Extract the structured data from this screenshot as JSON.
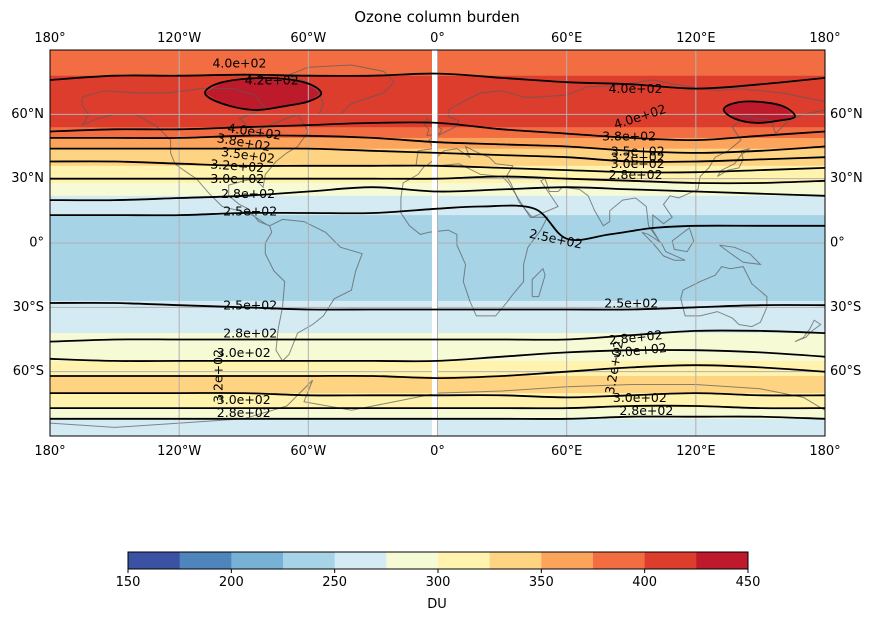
{
  "title": "Ozone column burden",
  "x_ticks": [
    {
      "lon": -180,
      "label": "180°"
    },
    {
      "lon": -120,
      "label": "120°W"
    },
    {
      "lon": -60,
      "label": "60°W"
    },
    {
      "lon": 0,
      "label": "0°"
    },
    {
      "lon": 60,
      "label": "60°E"
    },
    {
      "lon": 120,
      "label": "120°E"
    },
    {
      "lon": 180,
      "label": "180°"
    }
  ],
  "y_ticks": [
    {
      "lat": 60,
      "label": "60°N"
    },
    {
      "lat": 30,
      "label": "30°N"
    },
    {
      "lat": 0,
      "label": "0°"
    },
    {
      "lat": -30,
      "label": "30°S"
    },
    {
      "lat": -60,
      "label": "60°S"
    }
  ],
  "extent": {
    "lon": [
      -180,
      180
    ],
    "lat": [
      -90,
      90
    ]
  },
  "grid": true,
  "colorbar": {
    "label": "DU",
    "levels": [
      150,
      175,
      200,
      225,
      250,
      275,
      300,
      325,
      350,
      375,
      400,
      425,
      450
    ],
    "tick_labels": [
      "150",
      "200",
      "250",
      "300",
      "350",
      "400",
      "450"
    ],
    "tick_values": [
      150,
      200,
      250,
      300,
      350,
      400,
      450
    ],
    "colors": [
      "#3b52a3",
      "#4f85bd",
      "#77b1d6",
      "#a6d3e6",
      "#d4ebf4",
      "#f6fbd6",
      "#fff3ad",
      "#fed382",
      "#fca45c",
      "#f36d43",
      "#dc3d2d",
      "#bd1a2b"
    ]
  },
  "bands": [
    {
      "lat": [
        78,
        90
      ],
      "value": 387
    },
    {
      "lat": [
        54,
        78
      ],
      "value": 412
    },
    {
      "lat": [
        49,
        54
      ],
      "value": 387
    },
    {
      "lat": [
        44,
        49
      ],
      "value": 362
    },
    {
      "lat": [
        36,
        44
      ],
      "value": 337
    },
    {
      "lat": [
        28,
        36
      ],
      "value": 312
    },
    {
      "lat": [
        22,
        28
      ],
      "value": 287
    },
    {
      "lat": [
        13,
        22
      ],
      "value": 262
    },
    {
      "lat": [
        -27,
        13
      ],
      "value": 237
    },
    {
      "lat": [
        -42,
        -27
      ],
      "value": 262
    },
    {
      "lat": [
        -55,
        -42
      ],
      "value": 287
    },
    {
      "lat": [
        -62,
        -55
      ],
      "value": 312
    },
    {
      "lat": [
        -70,
        -62
      ],
      "value": 337
    },
    {
      "lat": [
        -77,
        -70
      ],
      "value": 312
    },
    {
      "lat": [
        -82,
        -77
      ],
      "value": 287
    },
    {
      "lat": [
        -90,
        -82
      ],
      "value": 262
    }
  ],
  "blobs": [
    {
      "value": 437,
      "polygon": [
        [
          -108,
          70
        ],
        [
          -100,
          65
        ],
        [
          -85,
          62
        ],
        [
          -70,
          64
        ],
        [
          -60,
          66
        ],
        [
          -54,
          70
        ],
        [
          -62,
          75
        ],
        [
          -80,
          77
        ],
        [
          -100,
          75
        ]
      ]
    },
    {
      "value": 437,
      "polygon": [
        [
          133,
          62
        ],
        [
          138,
          58
        ],
        [
          148,
          56
        ],
        [
          158,
          57
        ],
        [
          166,
          59
        ],
        [
          160,
          64
        ],
        [
          147,
          66
        ],
        [
          137,
          65
        ]
      ]
    }
  ],
  "contours": [
    {
      "value": 400,
      "points": [
        [
          -180,
          76
        ],
        [
          -150,
          78
        ],
        [
          -120,
          78
        ],
        [
          -90,
          78.5
        ],
        [
          -60,
          78
        ],
        [
          -30,
          78
        ],
        [
          0,
          79
        ],
        [
          30,
          77
        ],
        [
          60,
          75
        ],
        [
          90,
          74
        ],
        [
          120,
          72
        ],
        [
          150,
          74
        ],
        [
          180,
          77
        ]
      ]
    },
    {
      "value": 400,
      "points": [
        [
          -180,
          52
        ],
        [
          -150,
          53
        ],
        [
          -120,
          53
        ],
        [
          -90,
          54
        ],
        [
          -60,
          55
        ],
        [
          -30,
          56
        ],
        [
          0,
          56
        ],
        [
          30,
          53
        ],
        [
          60,
          51
        ],
        [
          90,
          49
        ],
        [
          120,
          48
        ],
        [
          150,
          50
        ],
        [
          180,
          52
        ]
      ]
    },
    {
      "value": 380,
      "points": [
        [
          -180,
          49
        ],
        [
          -150,
          49
        ],
        [
          -120,
          49
        ],
        [
          -90,
          50
        ],
        [
          -60,
          50
        ],
        [
          -30,
          49
        ],
        [
          0,
          47
        ],
        [
          30,
          46
        ],
        [
          60,
          45
        ],
        [
          90,
          43
        ],
        [
          120,
          42
        ],
        [
          150,
          43
        ],
        [
          180,
          45
        ]
      ]
    },
    {
      "value": 350,
      "points": [
        [
          -180,
          44
        ],
        [
          -150,
          44
        ],
        [
          -120,
          44
        ],
        [
          -90,
          44
        ],
        [
          -60,
          44
        ],
        [
          -30,
          43
        ],
        [
          0,
          42
        ],
        [
          30,
          41
        ],
        [
          60,
          40
        ],
        [
          90,
          38
        ],
        [
          120,
          38
        ],
        [
          150,
          39
        ],
        [
          180,
          40
        ]
      ]
    },
    {
      "value": 320,
      "points": [
        [
          -180,
          38
        ],
        [
          -150,
          38
        ],
        [
          -120,
          37
        ],
        [
          -90,
          36
        ],
        [
          -60,
          36
        ],
        [
          -30,
          36
        ],
        [
          0,
          36
        ],
        [
          30,
          35
        ],
        [
          60,
          34
        ],
        [
          90,
          33
        ],
        [
          120,
          33
        ],
        [
          150,
          34
        ],
        [
          180,
          35
        ]
      ]
    },
    {
      "value": 300,
      "points": [
        [
          -180,
          30
        ],
        [
          -150,
          30
        ],
        [
          -120,
          30
        ],
        [
          -90,
          30
        ],
        [
          -60,
          30
        ],
        [
          -30,
          30
        ],
        [
          0,
          30
        ],
        [
          30,
          31
        ],
        [
          60,
          30
        ],
        [
          90,
          29
        ],
        [
          120,
          28
        ],
        [
          150,
          28
        ],
        [
          180,
          29
        ]
      ]
    },
    {
      "value": 280,
      "points": [
        [
          -180,
          20
        ],
        [
          -150,
          20
        ],
        [
          -120,
          21
        ],
        [
          -90,
          22
        ],
        [
          -60,
          24
        ],
        [
          -30,
          26
        ],
        [
          0,
          24
        ],
        [
          30,
          25
        ],
        [
          60,
          26
        ],
        [
          90,
          25
        ],
        [
          120,
          24
        ],
        [
          150,
          23
        ],
        [
          180,
          22
        ]
      ]
    },
    {
      "value": 250,
      "points": [
        [
          -180,
          13
        ],
        [
          -150,
          13
        ],
        [
          -120,
          13
        ],
        [
          -90,
          14
        ],
        [
          -60,
          14
        ],
        [
          -30,
          14
        ],
        [
          0,
          16
        ],
        [
          20,
          17
        ],
        [
          45,
          16
        ],
        [
          60,
          2
        ],
        [
          80,
          4
        ],
        [
          100,
          7
        ],
        [
          120,
          8
        ],
        [
          150,
          8
        ],
        [
          180,
          8
        ]
      ]
    },
    {
      "value": 250,
      "points": [
        [
          -180,
          -28
        ],
        [
          -150,
          -28
        ],
        [
          -120,
          -29
        ],
        [
          -90,
          -30
        ],
        [
          -60,
          -31
        ],
        [
          -30,
          -31
        ],
        [
          0,
          -31
        ],
        [
          30,
          -31
        ],
        [
          60,
          -31
        ],
        [
          90,
          -31
        ],
        [
          120,
          -30
        ],
        [
          150,
          -29
        ],
        [
          180,
          -29
        ]
      ]
    },
    {
      "value": 280,
      "points": [
        [
          -180,
          -46
        ],
        [
          -150,
          -45
        ],
        [
          -120,
          -45
        ],
        [
          -90,
          -45
        ],
        [
          -60,
          -45
        ],
        [
          -30,
          -45
        ],
        [
          0,
          -45
        ],
        [
          30,
          -45
        ],
        [
          60,
          -45
        ],
        [
          90,
          -43
        ],
        [
          120,
          -41
        ],
        [
          150,
          -41
        ],
        [
          180,
          -42
        ]
      ]
    },
    {
      "value": 300,
      "points": [
        [
          -180,
          -54
        ],
        [
          -150,
          -55
        ],
        [
          -120,
          -55
        ],
        [
          -90,
          -55
        ],
        [
          -60,
          -55
        ],
        [
          -30,
          -55
        ],
        [
          0,
          -55
        ],
        [
          30,
          -53
        ],
        [
          60,
          -51
        ],
        [
          90,
          -50
        ],
        [
          120,
          -50
        ],
        [
          150,
          -51
        ],
        [
          180,
          -53
        ]
      ]
    },
    {
      "value": 320,
      "points": [
        [
          -180,
          -62
        ],
        [
          -150,
          -62
        ],
        [
          -120,
          -62
        ],
        [
          -90,
          -62
        ],
        [
          -60,
          -62
        ],
        [
          -30,
          -62
        ],
        [
          0,
          -63
        ],
        [
          30,
          -62
        ],
        [
          60,
          -60
        ],
        [
          90,
          -58
        ],
        [
          120,
          -57
        ],
        [
          150,
          -58
        ],
        [
          180,
          -60
        ]
      ]
    },
    {
      "value": 320,
      "points": [
        [
          -180,
          -70
        ],
        [
          -150,
          -70
        ],
        [
          -120,
          -70
        ],
        [
          -90,
          -70
        ],
        [
          -60,
          -71
        ],
        [
          -30,
          -71
        ],
        [
          0,
          -71
        ],
        [
          30,
          -71
        ],
        [
          60,
          -72
        ],
        [
          90,
          -71
        ],
        [
          120,
          -70
        ],
        [
          150,
          -71
        ],
        [
          180,
          -71
        ]
      ]
    },
    {
      "value": 300,
      "points": [
        [
          -180,
          -77
        ],
        [
          -150,
          -77
        ],
        [
          -120,
          -77
        ],
        [
          -90,
          -77
        ],
        [
          -60,
          -77
        ],
        [
          -30,
          -77
        ],
        [
          0,
          -77
        ],
        [
          30,
          -77
        ],
        [
          60,
          -77
        ],
        [
          90,
          -76
        ],
        [
          120,
          -76
        ],
        [
          150,
          -77
        ],
        [
          180,
          -77
        ]
      ]
    },
    {
      "value": 280,
      "points": [
        [
          -180,
          -82
        ],
        [
          -150,
          -82
        ],
        [
          -120,
          -82
        ],
        [
          -90,
          -82
        ],
        [
          -60,
          -82
        ],
        [
          -30,
          -82
        ],
        [
          0,
          -82
        ],
        [
          30,
          -82
        ],
        [
          60,
          -82
        ],
        [
          90,
          -81
        ],
        [
          120,
          -81
        ],
        [
          150,
          -81
        ],
        [
          180,
          -82
        ]
      ]
    },
    {
      "value": 420,
      "closed": true,
      "points": [
        [
          -108,
          70
        ],
        [
          -100,
          65
        ],
        [
          -85,
          62
        ],
        [
          -70,
          64
        ],
        [
          -60,
          66
        ],
        [
          -54,
          70
        ],
        [
          -62,
          75
        ],
        [
          -80,
          77
        ],
        [
          -100,
          75
        ]
      ]
    },
    {
      "value": 420,
      "closed": true,
      "points": [
        [
          133,
          62
        ],
        [
          138,
          58
        ],
        [
          148,
          56
        ],
        [
          158,
          57
        ],
        [
          166,
          59
        ],
        [
          160,
          64
        ],
        [
          147,
          66
        ],
        [
          137,
          65
        ]
      ]
    }
  ],
  "contour_labels": [
    {
      "text": "4.0e+02",
      "lon": -92,
      "lat": 84,
      "angle": 0
    },
    {
      "text": "4.2e+02",
      "lon": -77,
      "lat": 76,
      "angle": 0
    },
    {
      "text": "4.0e+02",
      "lon": -85,
      "lat": 52,
      "angle": 8
    },
    {
      "text": "3.8e+02",
      "lon": -90,
      "lat": 47,
      "angle": 10
    },
    {
      "text": "3.5e+02",
      "lon": -88,
      "lat": 41,
      "angle": 8
    },
    {
      "text": "3.2e+02",
      "lon": -93,
      "lat": 36,
      "angle": 4
    },
    {
      "text": "3.0e+02",
      "lon": -93,
      "lat": 30,
      "angle": 0
    },
    {
      "text": "2.8e+02",
      "lon": -88,
      "lat": 23,
      "angle": 0
    },
    {
      "text": "2.5e+02",
      "lon": -87,
      "lat": 15,
      "angle": 0
    },
    {
      "text": "4.0e+02",
      "lon": 92,
      "lat": 72,
      "angle": 0
    },
    {
      "text": "4.0e+02",
      "lon": 94,
      "lat": 59,
      "angle": -18
    },
    {
      "text": "3.8e+02",
      "lon": 89,
      "lat": 50,
      "angle": 0
    },
    {
      "text": "3.5e+02",
      "lon": 93,
      "lat": 43,
      "angle": 0
    },
    {
      "text": "3.2e+02",
      "lon": 93,
      "lat": 40,
      "angle": 0
    },
    {
      "text": "3.0e+02",
      "lon": 93,
      "lat": 37,
      "angle": 0
    },
    {
      "text": "2.8e+02",
      "lon": 92,
      "lat": 32,
      "angle": 0
    },
    {
      "text": "2.5e+02",
      "lon": 55,
      "lat": 2,
      "angle": 12
    },
    {
      "text": "2.5e+02",
      "lon": -87,
      "lat": -29,
      "angle": 0
    },
    {
      "text": "2.5e+02",
      "lon": 90,
      "lat": -28,
      "angle": 0
    },
    {
      "text": "2.8e+02",
      "lon": -87,
      "lat": -42,
      "angle": 0
    },
    {
      "text": "3.0e+02",
      "lon": -90,
      "lat": -51,
      "angle": 0
    },
    {
      "text": "2.8e+02",
      "lon": 92,
      "lat": -44,
      "angle": -6
    },
    {
      "text": "3.0e+02",
      "lon": 94,
      "lat": -50,
      "angle": -6
    },
    {
      "text": "3.2e+02",
      "lon": -102,
      "lat": -62,
      "angle": -90
    },
    {
      "text": "3.2e+02",
      "lon": 82,
      "lat": -58,
      "angle": -80
    },
    {
      "text": "3.0e+02",
      "lon": -90,
      "lat": -73,
      "angle": 0
    },
    {
      "text": "2.8e+02",
      "lon": -90,
      "lat": -79,
      "angle": 0
    },
    {
      "text": "3.0e+02",
      "lon": 94,
      "lat": -72,
      "angle": 0
    },
    {
      "text": "2.8e+02",
      "lon": 97,
      "lat": -78,
      "angle": 0
    }
  ]
}
